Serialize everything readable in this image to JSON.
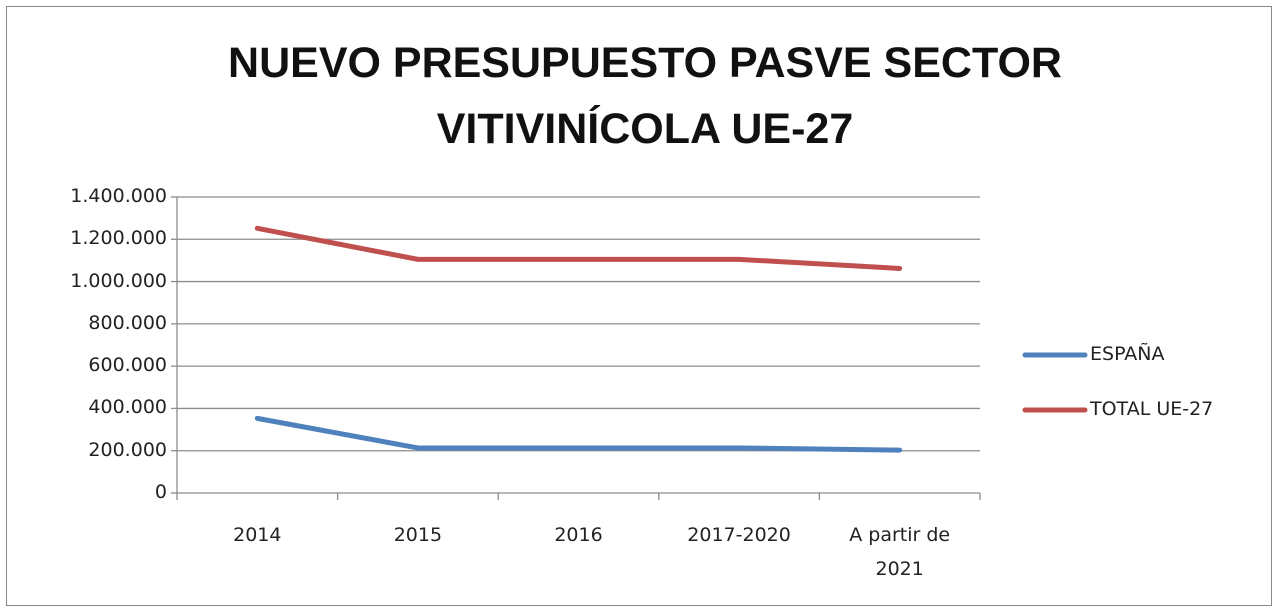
{
  "chart_data": {
    "type": "line",
    "title": "NUEVO PRESUPUESTO PASVE SECTOR VITIVINÍCOLA UE-27",
    "categories": [
      "2014",
      "2015",
      "2016",
      "2017-2020",
      "A partir de 2021"
    ],
    "series": [
      {
        "name": "ESPAÑA",
        "color": "#4f81bd",
        "values": [
          353000,
          213000,
          213000,
          213000,
          203000
        ]
      },
      {
        "name": "TOTAL UE-27",
        "color": "#c0504d",
        "values": [
          1252000,
          1105000,
          1105000,
          1105000,
          1062000
        ]
      }
    ],
    "ylim": [
      0,
      1400000
    ],
    "yticks": [
      0,
      {
        "value": 200000,
        "label": "200.000"
      },
      {
        "value": 400000,
        "label": "400.000"
      },
      {
        "value": 600000,
        "label": "600.000"
      },
      {
        "value": 800000,
        "label": "800.000"
      },
      {
        "value": 1000000,
        "label": "1.000.000"
      },
      {
        "value": 1200000,
        "label": "1.200.000"
      },
      {
        "value": 1400000,
        "label": "1.400.000"
      }
    ],
    "grid": true,
    "legend": "right"
  }
}
